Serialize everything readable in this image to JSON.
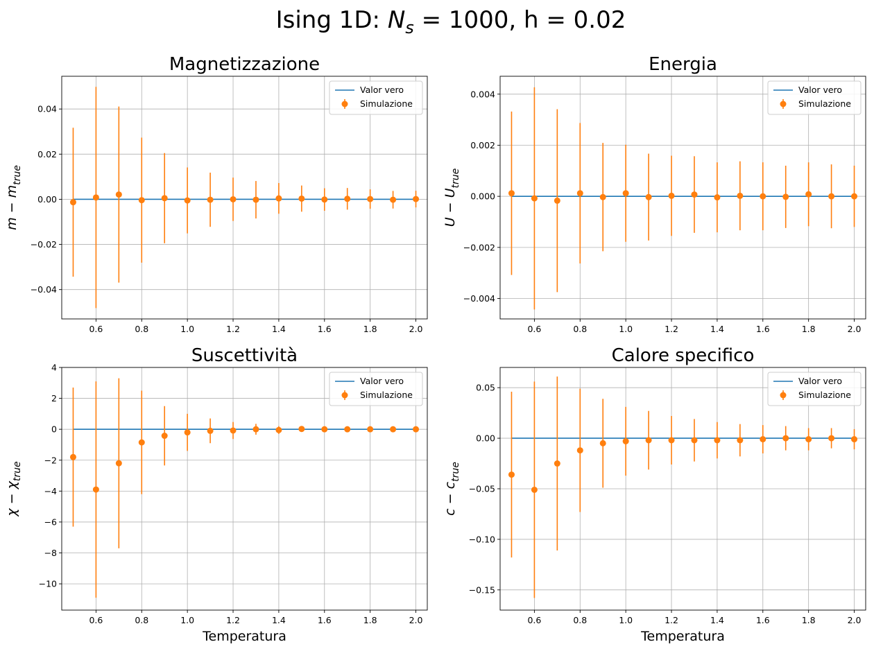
{
  "suptitle": {
    "prefix": "Ising 1D: ",
    "n_var": "N",
    "n_sub": "s",
    "suffix": " = 1000, h = 0.02"
  },
  "legend": {
    "line_label": "Valor vero",
    "points_label": "Simulazione"
  },
  "colors": {
    "true_line": "#1f77b4",
    "simulation": "#ff7f0e",
    "grid": "#b0b0b0"
  },
  "chart_data": [
    {
      "type": "scatter",
      "title": "Magnetizzazione",
      "xlabel": "",
      "ylabel": {
        "main": "m − m",
        "sub": "true"
      },
      "xlim": [
        0.45,
        2.05
      ],
      "ylim": [
        -0.053,
        0.0545
      ],
      "xticks": [
        0.6,
        0.8,
        1.0,
        1.2,
        1.4,
        1.6,
        1.8,
        2.0
      ],
      "xtick_labels": [
        "0.6",
        "0.8",
        "1.0",
        "1.2",
        "1.4",
        "1.6",
        "1.8",
        "2.0"
      ],
      "yticks": [
        -0.04,
        -0.02,
        0.0,
        0.02,
        0.04
      ],
      "ytick_labels": [
        "−0.04",
        "−0.02",
        "0.00",
        "0.02",
        "0.04"
      ],
      "legend_position": "top-right",
      "grid": true,
      "x": [
        0.5,
        0.6,
        0.7,
        0.8,
        0.9,
        1.0,
        1.1,
        1.2,
        1.3,
        1.4,
        1.5,
        1.6,
        1.7,
        1.8,
        1.9,
        2.0
      ],
      "series": [
        {
          "name": "Valor vero",
          "kind": "line",
          "values": [
            0,
            0,
            0,
            0,
            0,
            0,
            0,
            0,
            0,
            0,
            0,
            0,
            0,
            0,
            0,
            0
          ]
        },
        {
          "name": "Simulazione",
          "kind": "errorbar",
          "values": [
            -0.0013,
            0.0008,
            0.0021,
            -0.0004,
            0.0005,
            -0.0005,
            -0.0002,
            0.0,
            -0.0002,
            0.0004,
            0.0003,
            -0.0001,
            0.0002,
            0.0001,
            -0.0002,
            0.0001
          ],
          "errors": [
            0.033,
            0.049,
            0.039,
            0.0277,
            0.02,
            0.0146,
            0.012,
            0.0096,
            0.0083,
            0.0068,
            0.0058,
            0.005,
            0.0048,
            0.0043,
            0.0039,
            0.0037
          ]
        }
      ]
    },
    {
      "type": "scatter",
      "title": "Energia",
      "xlabel": "",
      "ylabel": {
        "main": "U − U",
        "sub": "true"
      },
      "xlim": [
        0.45,
        2.05
      ],
      "ylim": [
        -0.0048,
        0.0047
      ],
      "xticks": [
        0.6,
        0.8,
        1.0,
        1.2,
        1.4,
        1.6,
        1.8,
        2.0
      ],
      "xtick_labels": [
        "0.6",
        "0.8",
        "1.0",
        "1.2",
        "1.4",
        "1.6",
        "1.8",
        "2.0"
      ],
      "yticks": [
        -0.004,
        -0.002,
        0.0,
        0.002,
        0.004
      ],
      "ytick_labels": [
        "−0.004",
        "−0.002",
        "0.000",
        "0.002",
        "0.004"
      ],
      "legend_position": "top-right",
      "grid": true,
      "x": [
        0.5,
        0.6,
        0.7,
        0.8,
        0.9,
        1.0,
        1.1,
        1.2,
        1.3,
        1.4,
        1.5,
        1.6,
        1.7,
        1.8,
        1.9,
        2.0
      ],
      "series": [
        {
          "name": "Valor vero",
          "kind": "line",
          "values": [
            0,
            0,
            0,
            0,
            0,
            0,
            0,
            0,
            0,
            0,
            0,
            0,
            0,
            0,
            0,
            0
          ]
        },
        {
          "name": "Simulazione",
          "kind": "errorbar",
          "values": [
            0.00012,
            -8e-05,
            -0.00017,
            0.00012,
            -3e-05,
            0.00012,
            -3e-05,
            2e-05,
            7e-05,
            -4e-05,
            2e-05,
            0.0,
            -2e-05,
            8e-05,
            0.0,
            0.0
          ],
          "errors": [
            0.0032,
            0.00435,
            0.00358,
            0.00275,
            0.00212,
            0.0019,
            0.0017,
            0.00157,
            0.0015,
            0.00137,
            0.00135,
            0.00133,
            0.00122,
            0.00125,
            0.00125,
            0.0012
          ]
        }
      ]
    },
    {
      "type": "scatter",
      "title": "Suscettività",
      "xlabel": "Temperatura",
      "ylabel": {
        "main": "χ − χ",
        "sub": "true"
      },
      "xlim": [
        0.45,
        2.05
      ],
      "ylim": [
        -11.7,
        4.0
      ],
      "xticks": [
        0.6,
        0.8,
        1.0,
        1.2,
        1.4,
        1.6,
        1.8,
        2.0
      ],
      "xtick_labels": [
        "0.6",
        "0.8",
        "1.0",
        "1.2",
        "1.4",
        "1.6",
        "1.8",
        "2.0"
      ],
      "yticks": [
        -10,
        -8,
        -6,
        -4,
        -2,
        0,
        2,
        4
      ],
      "ytick_labels": [
        "−10",
        "−8",
        "−6",
        "−4",
        "−2",
        "0",
        "2",
        "4"
      ],
      "legend_position": "top-right",
      "grid": true,
      "x": [
        0.5,
        0.6,
        0.7,
        0.8,
        0.9,
        1.0,
        1.1,
        1.2,
        1.3,
        1.4,
        1.5,
        1.6,
        1.7,
        1.8,
        1.9,
        2.0
      ],
      "series": [
        {
          "name": "Valor vero",
          "kind": "line",
          "values": [
            0,
            0,
            0,
            0,
            0,
            0,
            0,
            0,
            0,
            0,
            0,
            0,
            0,
            0,
            0,
            0
          ]
        },
        {
          "name": "Simulazione",
          "kind": "errorbar",
          "values": [
            -1.8,
            -3.9,
            -2.2,
            -0.85,
            -0.42,
            -0.2,
            -0.1,
            -0.08,
            0.0,
            -0.05,
            0.02,
            0.0,
            0.0,
            0.0,
            0.0,
            0.0
          ],
          "errors": [
            4.5,
            7.0,
            5.5,
            3.35,
            1.92,
            1.2,
            0.8,
            0.55,
            0.35,
            0.25,
            0.18,
            0.12,
            0.08,
            0.06,
            0.05,
            0.04
          ]
        }
      ]
    },
    {
      "type": "scatter",
      "title": "Calore specifico",
      "xlabel": "Temperatura",
      "ylabel": {
        "main": "c − c",
        "sub": "true"
      },
      "xlim": [
        0.45,
        2.05
      ],
      "ylim": [
        -0.17,
        0.07
      ],
      "xticks": [
        0.6,
        0.8,
        1.0,
        1.2,
        1.4,
        1.6,
        1.8,
        2.0
      ],
      "xtick_labels": [
        "0.6",
        "0.8",
        "1.0",
        "1.2",
        "1.4",
        "1.6",
        "1.8",
        "2.0"
      ],
      "yticks": [
        -0.15,
        -0.1,
        -0.05,
        0.0,
        0.05
      ],
      "ytick_labels": [
        "−0.15",
        "−0.10",
        "−0.05",
        "0.00",
        "0.05"
      ],
      "legend_position": "top-right",
      "grid": true,
      "x": [
        0.5,
        0.6,
        0.7,
        0.8,
        0.9,
        1.0,
        1.1,
        1.2,
        1.3,
        1.4,
        1.5,
        1.6,
        1.7,
        1.8,
        1.9,
        2.0
      ],
      "series": [
        {
          "name": "Valor vero",
          "kind": "line",
          "values": [
            0,
            0,
            0,
            0,
            0,
            0,
            0,
            0,
            0,
            0,
            0,
            0,
            0,
            0,
            0,
            0
          ]
        },
        {
          "name": "Simulazione",
          "kind": "errorbar",
          "values": [
            -0.036,
            -0.051,
            -0.025,
            -0.012,
            -0.005,
            -0.003,
            -0.002,
            -0.002,
            -0.002,
            -0.002,
            -0.002,
            -0.001,
            0.0,
            -0.001,
            0.0,
            -0.001
          ],
          "errors": [
            0.082,
            0.107,
            0.086,
            0.061,
            0.044,
            0.034,
            0.029,
            0.024,
            0.021,
            0.018,
            0.016,
            0.014,
            0.012,
            0.011,
            0.01,
            0.01
          ]
        }
      ]
    }
  ]
}
